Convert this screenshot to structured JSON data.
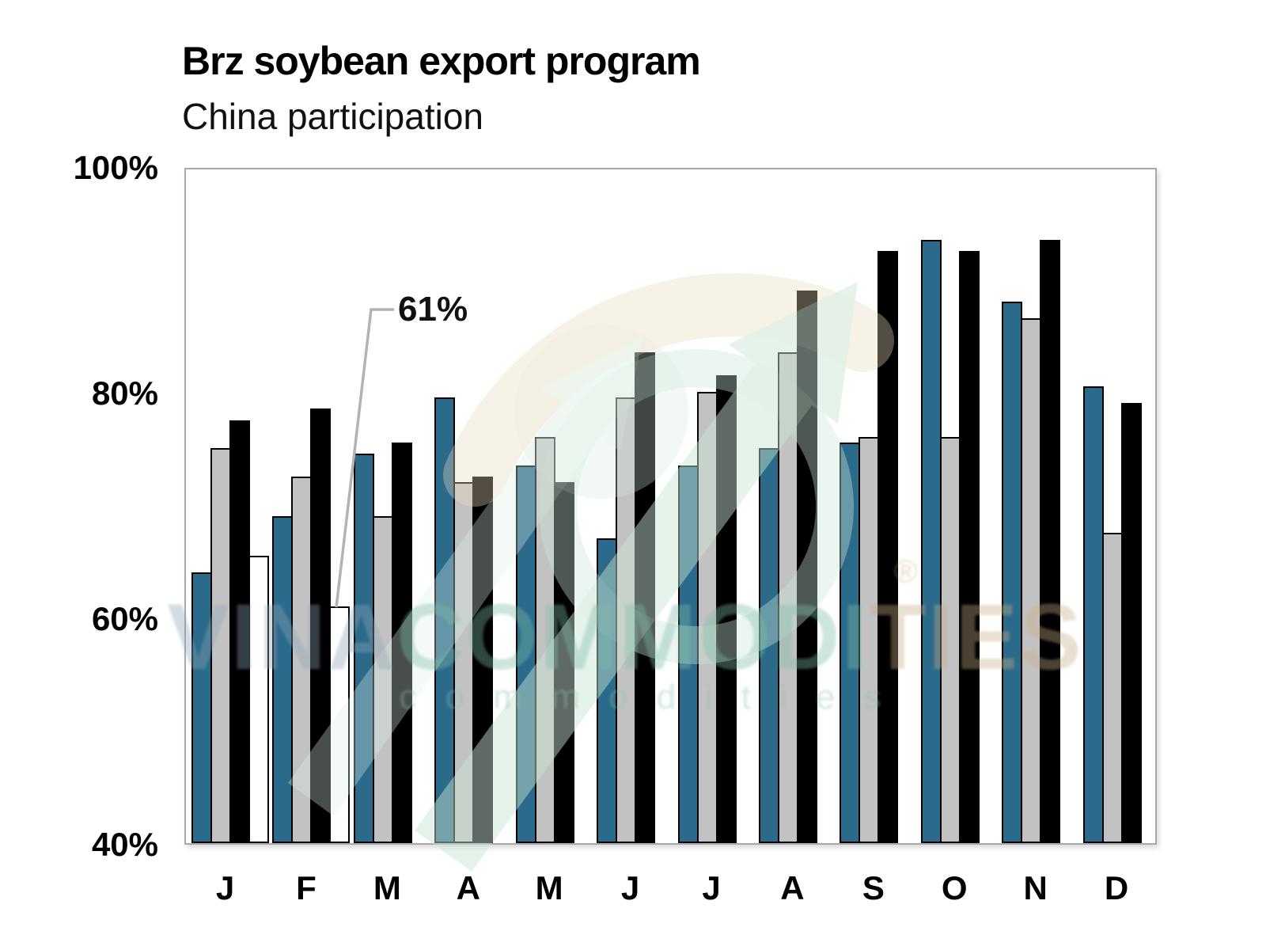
{
  "header": {
    "title": "Brz soybean export program",
    "subtitle": "China participation"
  },
  "chart_data": {
    "type": "bar",
    "title": "Brz soybean export program",
    "subtitle": "China participation",
    "categories": [
      "J",
      "F",
      "M",
      "A",
      "M",
      "J",
      "J",
      "A",
      "S",
      "O",
      "N",
      "D"
    ],
    "series": [
      {
        "name": "blue",
        "color": "#2b6a8a",
        "values": [
          64,
          69,
          74.5,
          79.5,
          73.5,
          67,
          73.5,
          75,
          75.5,
          93.5,
          88,
          80.5
        ]
      },
      {
        "name": "gray",
        "color": "#c2c2c2",
        "values": [
          75,
          72.5,
          69,
          72,
          76,
          79.5,
          80,
          83.5,
          76,
          76,
          86.5,
          67.5
        ]
      },
      {
        "name": "black",
        "color": "#000000",
        "values": [
          77.5,
          78.5,
          75.5,
          72.5,
          72,
          83.5,
          81.5,
          89,
          92.5,
          92.5,
          93.5,
          79
        ]
      },
      {
        "name": "white",
        "color": "#ffffff",
        "values": [
          65.5,
          61,
          null,
          null,
          null,
          null,
          null,
          null,
          null,
          null,
          null,
          null
        ]
      }
    ],
    "ylim": [
      40,
      100
    ],
    "y_ticks": [
      "100%",
      "80%",
      "60%",
      "40%"
    ],
    "y_tick_values": [
      100,
      80,
      60,
      40
    ],
    "grid": false,
    "legend": "none",
    "bar_outline_color": "#000000",
    "annotation": {
      "label": "61%",
      "category_index": 1,
      "series": "white",
      "value": 61
    }
  },
  "watermark": {
    "brand_part1": "VINA",
    "brand_part2": "COMMODI",
    "brand_part3": "TIES",
    "registered": "®",
    "brand_sub": "c o m m o d i t i e s",
    "arrow_color": "#c9e4d4",
    "ring_color": "#cbe5d5",
    "arc_color": "#e8d9bf"
  }
}
